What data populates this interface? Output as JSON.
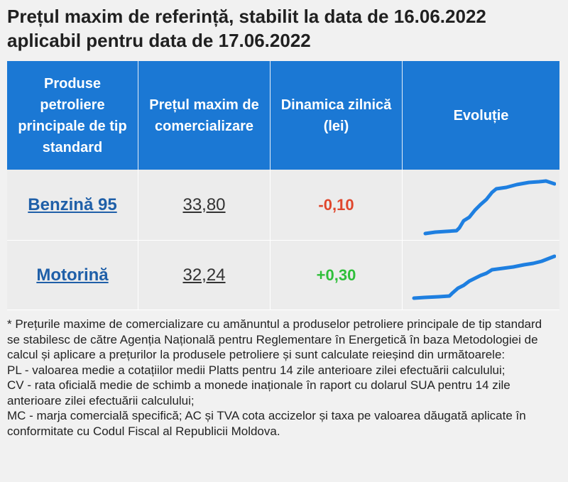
{
  "title": {
    "line1": "Prețul maxim de referință, stabilit la data de 16.06.2022",
    "line2": "aplicabil pentru data de 17.06.2022"
  },
  "table": {
    "headers": {
      "product": "Produse petroliere principale de tip standard",
      "price": "Prețul maxim de comercializare",
      "dynamics": "Dinamica zilnică (lei)",
      "evolution": "Evoluție"
    },
    "rows": [
      {
        "product": "Benzină 95",
        "price": "33,80",
        "dynamics": "-0,10",
        "trend": "down"
      },
      {
        "product": "Motorină",
        "price": "32,24",
        "dynamics": "+0,30",
        "trend": "up"
      }
    ]
  },
  "colors": {
    "header_bg": "#1b78d4",
    "negative": "#e0462c",
    "positive": "#2fbf3a",
    "sparkline": "#1e7fe0"
  },
  "notes": [
    "* Prețurile maxime de comercializare cu amănuntul a produselor petroliere principale de tip standard se stabilesc de către Agenția Națională pentru Reglementare în Energetică în baza Metodologiei de calcul și aplicare a prețurilor la produsele petroliere și sunt calculate reieșind din următoarele:",
    "PL - valoarea medie a cotațiilor medii Platts pentru 14 zile anterioare zilei efectuării calculului;",
    "CV - rata oficială medie de schimb a monede inaționale în raport cu dolarul SUA pentru 14 zile anterioare zilei efectuării calculului;",
    "MC - marja comercială specifică; AC și TVA cota accizelor și taxa pe valoarea dăugată aplicate în conformitate cu Codul Fiscal al Republicii Moldova."
  ]
}
